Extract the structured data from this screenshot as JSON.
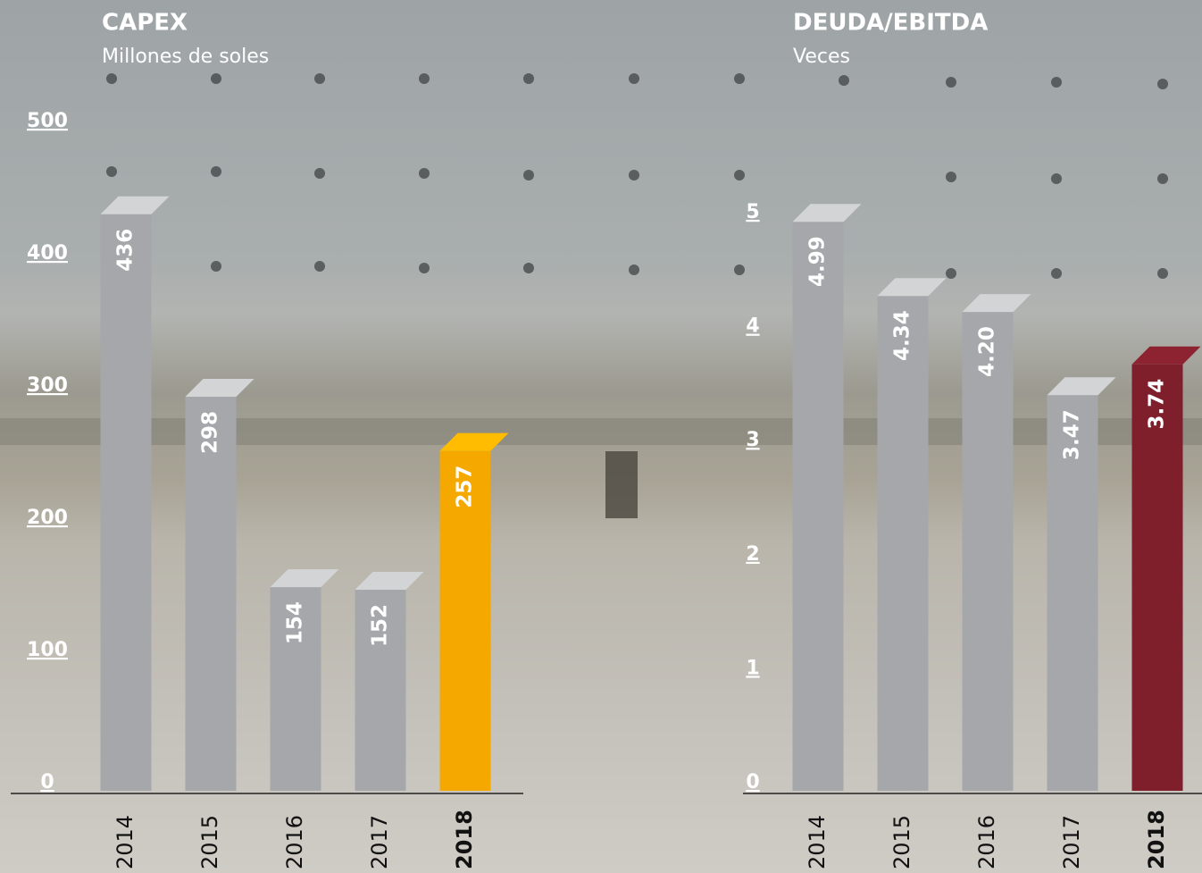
{
  "charts": [
    {
      "type": "bar",
      "title": "CAPEX",
      "subtitle": "Millones de soles",
      "categories": [
        "2014",
        "2015",
        "2016",
        "2017",
        "2018"
      ],
      "values": [
        436,
        298,
        154,
        152,
        257
      ],
      "colors": [
        "#a6a7aa",
        "#a6a7aa",
        "#a6a7aa",
        "#a6a7aa",
        "#f4a800"
      ],
      "ylim": [
        0,
        500
      ],
      "yticks": [
        0,
        100,
        200,
        300,
        400,
        500
      ]
    },
    {
      "type": "bar",
      "title": "DEUDA/EBITDA",
      "subtitle": "Veces",
      "categories": [
        "2014",
        "2015",
        "2016",
        "2017",
        "2018"
      ],
      "values": [
        4.99,
        4.34,
        4.2,
        3.47,
        3.74
      ],
      "value_labels": [
        "4.99",
        "4.34",
        "4.20",
        "3.47",
        "3.74"
      ],
      "colors": [
        "#a6a7aa",
        "#a6a7aa",
        "#a6a7aa",
        "#a6a7aa",
        "#7e1f2b"
      ],
      "ylim": [
        0,
        5
      ],
      "yticks": [
        0,
        1,
        2,
        3,
        4,
        5
      ]
    }
  ]
}
